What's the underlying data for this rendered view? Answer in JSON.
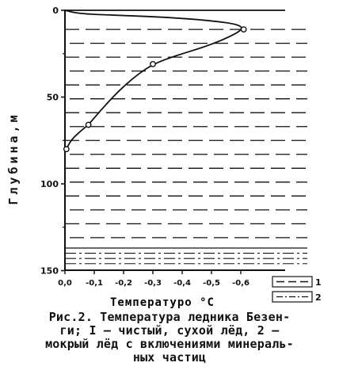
{
  "chart_data": {
    "type": "line",
    "xlabel": "Температуро °С",
    "ylabel": "Глубина,м",
    "x_ticks": [
      "0,0",
      "-0,1",
      "-0,2",
      "-0,3",
      "-0,4",
      "-0,5",
      "-0,6"
    ],
    "y_ticks": [
      "0",
      "50",
      "100",
      "150"
    ],
    "xlim": [
      0.0,
      -0.7
    ],
    "ylim": [
      0,
      150
    ],
    "y_inverted": true,
    "series": [
      {
        "x": [
          -0.005,
          -0.02,
          -0.05,
          -0.08,
          -0.12,
          -0.18,
          -0.24,
          -0.3,
          -0.38,
          -0.46,
          -0.54,
          -0.61,
          -0.59,
          -0.5,
          -0.35,
          -0.2,
          -0.05,
          0.0
        ],
        "y": [
          80,
          75,
          70,
          66,
          58,
          47,
          38,
          31,
          26,
          22,
          17,
          11,
          8,
          6,
          4,
          3,
          2,
          0
        ],
        "marked_points": [
          {
            "x": -0.005,
            "y": 80
          },
          {
            "x": -0.08,
            "y": 66
          },
          {
            "x": -0.3,
            "y": 31
          },
          {
            "x": -0.61,
            "y": 11
          }
        ]
      }
    ],
    "legend": {
      "placement": "bottom-right",
      "entries": [
        {
          "label": "1",
          "pattern": "dashed"
        },
        {
          "label": "2",
          "pattern": "dash-dot"
        }
      ]
    },
    "hatching": [
      {
        "zone": "clean dry ice",
        "depth_range": [
          10,
          137
        ],
        "pattern": "dashed"
      },
      {
        "zone": "wet ice with mineral inclusions",
        "depth_range": [
          137,
          150
        ],
        "pattern": "dash-dot"
      }
    ]
  },
  "caption": {
    "lines": [
      "Рис.2. Температура ледника  Безен-",
      "ги; I – чистый,  сухой лёд,  2 –",
      "мокрый лёд с включениями минераль-",
      "ных частиц"
    ]
  }
}
